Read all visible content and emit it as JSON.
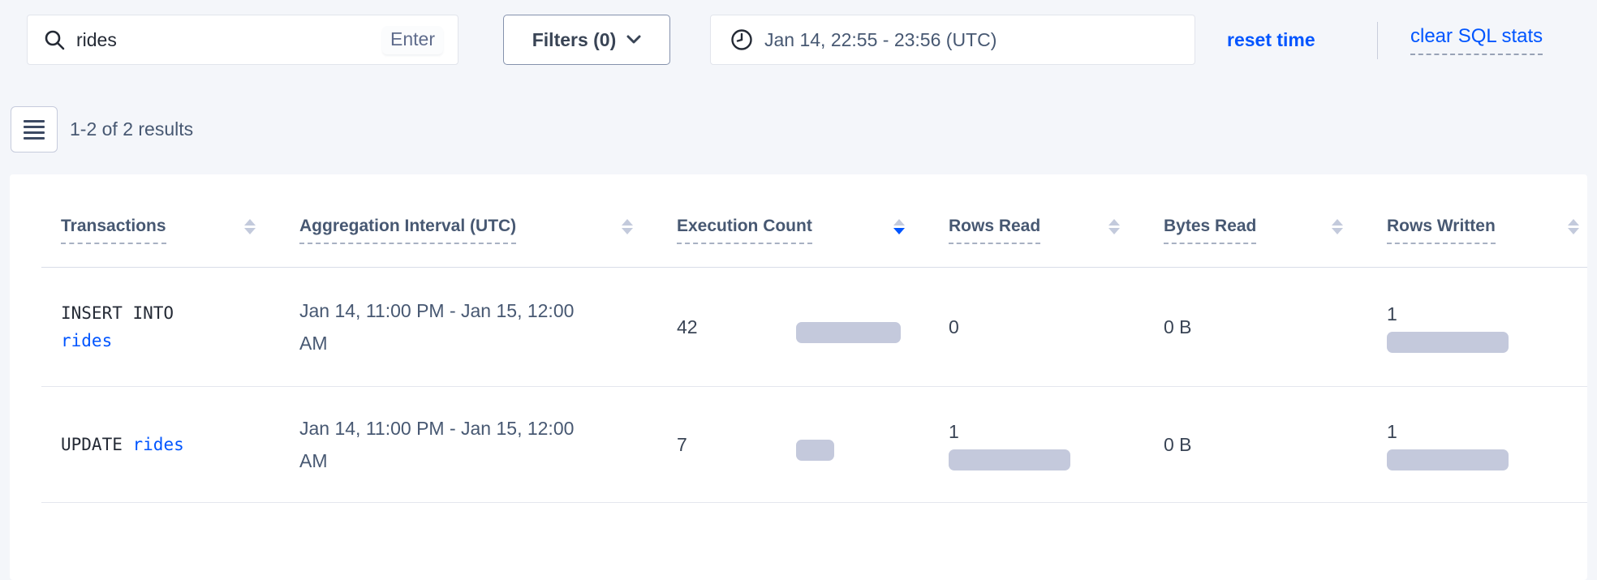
{
  "toolbar": {
    "search": {
      "value": "rides",
      "hint": "Enter"
    },
    "filters_label": "Filters (0)",
    "time_range": "Jan 14, 22:55 - 23:56 (UTC)",
    "reset_time_label": "reset time",
    "clear_sql_stats_label": "clear SQL stats"
  },
  "results_bar": {
    "count_text": "1-2 of 2 results"
  },
  "table": {
    "columns": [
      {
        "label": "Transactions",
        "sort": "none"
      },
      {
        "label": "Aggregation Interval (UTC)",
        "sort": "none"
      },
      {
        "label": "Execution Count",
        "sort": "desc"
      },
      {
        "label": "Rows Read",
        "sort": "none"
      },
      {
        "label": "Bytes Read",
        "sort": "none"
      },
      {
        "label": "Rows Written",
        "sort": "none"
      }
    ],
    "rows": [
      {
        "transaction": {
          "statement": "INSERT INTO",
          "table": "rides"
        },
        "interval": "Jan 14, 11:00 PM - Jan 15, 12:00 AM",
        "execution_count": {
          "value": "42",
          "bar": 129
        },
        "rows_read": {
          "value": "0"
        },
        "bytes_read": {
          "value": "0 B"
        },
        "rows_written": {
          "value": "1",
          "bar": 150
        }
      },
      {
        "transaction": {
          "statement": "UPDATE",
          "table": "rides"
        },
        "interval": "Jan 14, 11:00 PM - Jan 15, 12:00 AM",
        "execution_count": {
          "value": "7",
          "bar": 47
        },
        "rows_read": {
          "value": "1",
          "bar": 150
        },
        "bytes_read": {
          "value": "0 B"
        },
        "rows_written": {
          "value": "1",
          "bar": 150
        }
      }
    ]
  },
  "colors": {
    "link_blue": "#0055ff",
    "bar_fill": "#c4c9dc",
    "page_background": "#f4f6fa",
    "active_sort": "#0055ff"
  }
}
